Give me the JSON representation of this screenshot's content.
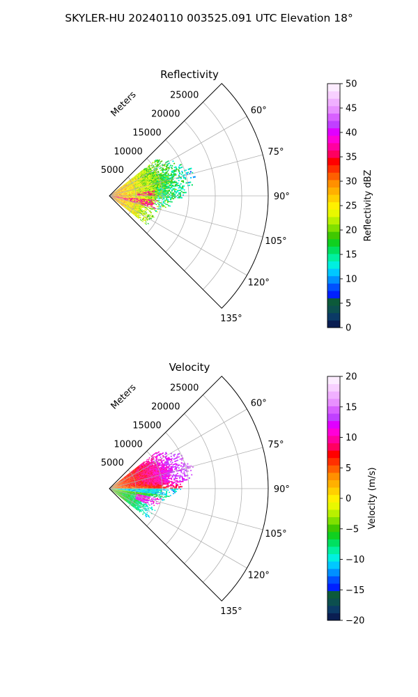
{
  "figure": {
    "suptitle": "SKYLER-HU  20240110  003525.091 UTC Elevation 18°"
  },
  "chart_data": [
    {
      "type": "heatmap",
      "subtype": "polar-sector-ppi",
      "title": "Reflectivity",
      "radial_label": "Meters",
      "theta_range_deg": [
        45,
        135
      ],
      "r_range_m": [
        0,
        30000
      ],
      "r_ticks": [
        5000,
        10000,
        15000,
        20000,
        25000
      ],
      "r_tick_labels": [
        "5000",
        "10000",
        "15000",
        "20000",
        "25000"
      ],
      "theta_ticks_deg": [
        60,
        75,
        90,
        105,
        120,
        135
      ],
      "theta_tick_labels": [
        "60°",
        "75°",
        "90°",
        "105°",
        "120°",
        "135°"
      ],
      "data_extent_r_m": [
        0,
        16000
      ],
      "grid": true,
      "colorbar": {
        "label": "Reflectivity dBZ",
        "range": [
          0,
          50
        ],
        "ticks": [
          0,
          5,
          10,
          15,
          20,
          25,
          30,
          35,
          40,
          45,
          50
        ],
        "tick_labels": [
          "0",
          "5",
          "10",
          "15",
          "20",
          "25",
          "30",
          "35",
          "40",
          "45",
          "50"
        ],
        "colors": [
          "#0a1e52",
          "#0b3a66",
          "#0c4f4f",
          "#0c5a3a",
          "#0020ff",
          "#0050ff",
          "#0090ff",
          "#00c8ff",
          "#00f0e0",
          "#00f0a0",
          "#00e060",
          "#10d020",
          "#40c800",
          "#80e000",
          "#b8f000",
          "#e8f800",
          "#fff000",
          "#ffd000",
          "#ffb000",
          "#ff9000",
          "#ff6000",
          "#ff3000",
          "#ff0000",
          "#ff0060",
          "#ff00a0",
          "#ff00d8",
          "#e000ff",
          "#c040ff",
          "#d860ff",
          "#e890ff",
          "#f0b0ff",
          "#f8d0ff",
          "#fcecff"
        ]
      }
    },
    {
      "type": "heatmap",
      "subtype": "polar-sector-ppi",
      "title": "Velocity",
      "radial_label": "Meters",
      "theta_range_deg": [
        45,
        135
      ],
      "r_range_m": [
        0,
        30000
      ],
      "r_ticks": [
        5000,
        10000,
        15000,
        20000,
        25000
      ],
      "r_tick_labels": [
        "5000",
        "10000",
        "15000",
        "20000",
        "25000"
      ],
      "theta_ticks_deg": [
        60,
        75,
        90,
        105,
        120,
        135
      ],
      "theta_tick_labels": [
        "60°",
        "75°",
        "90°",
        "105°",
        "120°",
        "135°"
      ],
      "data_extent_r_m": [
        0,
        16000
      ],
      "grid": true,
      "colorbar": {
        "label": "Velocity (m/s)",
        "range": [
          -20,
          20
        ],
        "ticks": [
          -20,
          -15,
          -10,
          -5,
          0,
          5,
          10,
          15,
          20
        ],
        "tick_labels": [
          "−20",
          "−15",
          "−10",
          "−5",
          "0",
          "5",
          "10",
          "15",
          "20"
        ],
        "colors": [
          "#0a1e52",
          "#0b3a66",
          "#0c4f4f",
          "#0c5a3a",
          "#0020ff",
          "#0050ff",
          "#0090ff",
          "#00c8ff",
          "#00f0e0",
          "#00f0a0",
          "#00e060",
          "#10d020",
          "#40c800",
          "#80e000",
          "#b8f000",
          "#e8f800",
          "#fff000",
          "#ffd000",
          "#ffb000",
          "#ff9000",
          "#ff6000",
          "#ff3000",
          "#ff0000",
          "#ff0060",
          "#ff00a0",
          "#ff00d8",
          "#e000ff",
          "#c040ff",
          "#d860ff",
          "#e890ff",
          "#f0b0ff",
          "#f8d0ff",
          "#fcecff"
        ]
      }
    }
  ]
}
